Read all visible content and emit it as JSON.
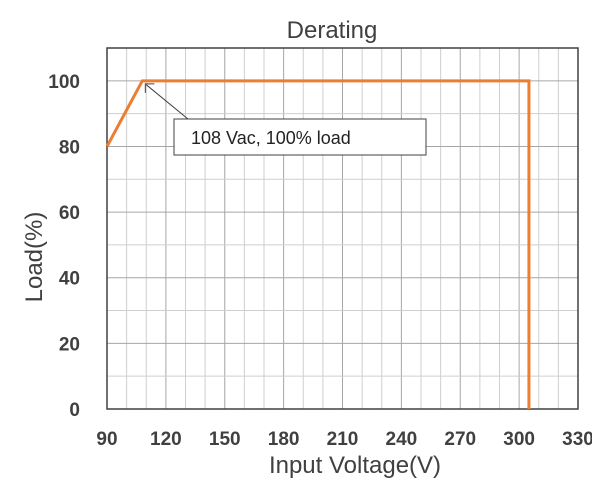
{
  "chart_data": {
    "type": "line",
    "title": "Derating",
    "xlabel": "Input Voltage(V)",
    "ylabel": "Load(%)",
    "xlim": [
      90,
      330
    ],
    "ylim": [
      0,
      110
    ],
    "xticks": [
      90,
      120,
      150,
      180,
      210,
      240,
      270,
      300,
      330
    ],
    "yticks": [
      0,
      20,
      40,
      60,
      80,
      100
    ],
    "grid": true,
    "series": [
      {
        "points": [
          [
            90,
            80
          ],
          [
            108,
            100
          ],
          [
            305,
            100
          ],
          [
            305,
            0
          ]
        ],
        "color": "#ED7D31"
      }
    ],
    "annotations": [
      {
        "text": "108 Vac, 100% load",
        "x": 108,
        "y": 100
      }
    ]
  }
}
